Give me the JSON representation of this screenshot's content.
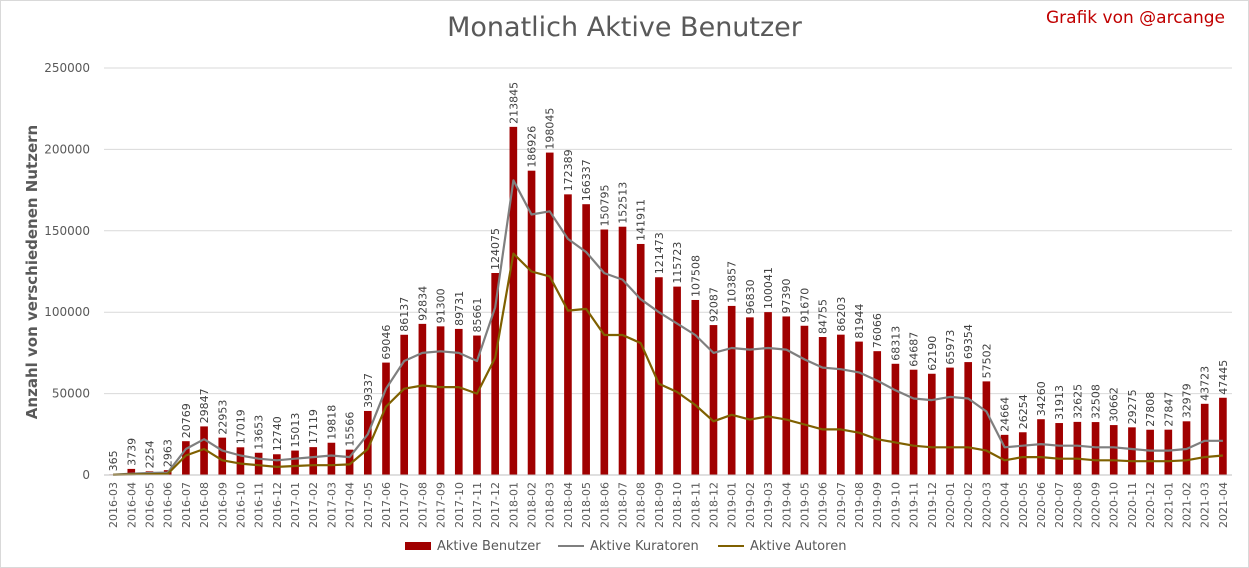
{
  "title": "Monatlich Aktive Benutzer",
  "credit": "Grafik von @arcange",
  "chart_data": {
    "type": "bar",
    "title": "Monatlich Aktive Benutzer",
    "ylabel": "Anzahl von verschiedenen Nutzern",
    "xlabel": "",
    "ylim": [
      0,
      250000
    ],
    "yticks": [
      "0",
      "50000",
      "100000",
      "150000",
      "200000",
      "250000"
    ],
    "grid": true,
    "legend_position": "bottom",
    "categories": [
      "2016-03",
      "2016-04",
      "2016-05",
      "2016-06",
      "2016-07",
      "2016-08",
      "2016-09",
      "2016-10",
      "2016-11",
      "2016-12",
      "2017-01",
      "2017-02",
      "2017-03",
      "2017-04",
      "2017-05",
      "2017-06",
      "2017-07",
      "2017-08",
      "2017-09",
      "2017-10",
      "2017-11",
      "2017-12",
      "2018-01",
      "2018-02",
      "2018-03",
      "2018-04",
      "2018-05",
      "2018-06",
      "2018-07",
      "2018-08",
      "2018-09",
      "2018-10",
      "2018-11",
      "2018-12",
      "2019-01",
      "2019-02",
      "2019-03",
      "2019-04",
      "2019-05",
      "2019-06",
      "2019-07",
      "2019-08",
      "2019-09",
      "2019-10",
      "2019-11",
      "2019-12",
      "2020-01",
      "2020-02",
      "2020-03",
      "2020-04",
      "2020-05",
      "2020-06",
      "2020-07",
      "2020-08",
      "2020-09",
      "2020-10",
      "2020-11",
      "2020-12",
      "2021-01",
      "2021-02",
      "2021-03",
      "2021-04"
    ],
    "series": [
      {
        "name": "Aktive Benutzer",
        "kind": "bar",
        "color": "#a00000",
        "values": [
          365,
          3739,
          2254,
          2963,
          20769,
          29847,
          22953,
          17019,
          13653,
          12740,
          15013,
          17119,
          19818,
          15566,
          39337,
          69046,
          86137,
          92834,
          91300,
          89731,
          85661,
          124075,
          213845,
          186926,
          198045,
          172389,
          166337,
          150795,
          152513,
          141911,
          121473,
          115723,
          107508,
          92087,
          103857,
          96830,
          100041,
          97390,
          91670,
          84755,
          86203,
          81944,
          76066,
          68313,
          64687,
          62190,
          65973,
          69354,
          57502,
          24664,
          26254,
          34260,
          31913,
          32625,
          32508,
          30662,
          29275,
          27808,
          27847,
          32979,
          43723,
          47445
        ]
      },
      {
        "name": "Aktive Kuratoren",
        "kind": "line",
        "color": "#7f7f7f",
        "values": [
          200,
          800,
          1200,
          1500,
          16000,
          22000,
          15000,
          12000,
          10000,
          9000,
          10000,
          11000,
          12000,
          11000,
          25000,
          53000,
          70000,
          75000,
          76000,
          75000,
          70000,
          103000,
          181000,
          160000,
          162000,
          145000,
          137000,
          124000,
          120000,
          108000,
          100000,
          93000,
          86000,
          75000,
          78000,
          77000,
          78000,
          77000,
          71000,
          66000,
          65000,
          63000,
          58000,
          52000,
          47000,
          46000,
          48000,
          47000,
          39000,
          17000,
          18000,
          19000,
          18000,
          18000,
          17000,
          17000,
          16000,
          15000,
          15000,
          16000,
          21000,
          21000
        ]
      },
      {
        "name": "Aktive Autoren",
        "kind": "line",
        "color": "#7f6000",
        "values": [
          100,
          300,
          500,
          700,
          12000,
          16000,
          9000,
          7000,
          6000,
          5000,
          5500,
          6000,
          6000,
          6500,
          16000,
          42000,
          53000,
          55000,
          54000,
          54000,
          50000,
          72000,
          136000,
          125000,
          122000,
          101000,
          102000,
          86000,
          86000,
          81000,
          56000,
          51000,
          43000,
          33000,
          37000,
          34000,
          36000,
          34000,
          31000,
          28000,
          28000,
          26000,
          22000,
          20000,
          18000,
          17000,
          17000,
          17000,
          15000,
          9000,
          11000,
          11000,
          10000,
          10000,
          9000,
          9000,
          8500,
          8500,
          8500,
          9000,
          11000,
          12000
        ]
      }
    ]
  }
}
